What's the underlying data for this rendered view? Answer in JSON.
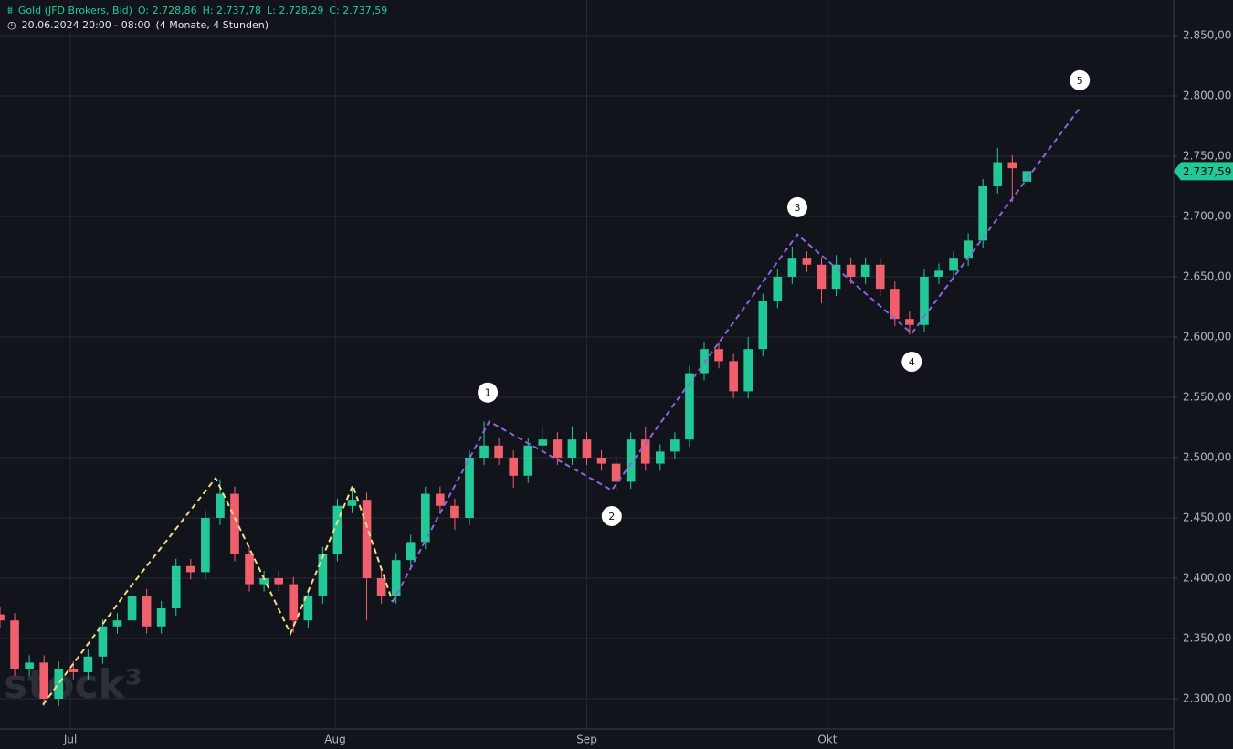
{
  "header": {
    "symbol": "Gold (JFD Brokers, Bid)",
    "ohlc": [
      "O: 2.728,86",
      "H: 2.737,78",
      "L: 2.728,29",
      "C: 2.737,59"
    ],
    "session": "20.06.2024 20:00 - 08:00",
    "span": "(4 Monate, 4 Stunden)"
  },
  "chart_data": {
    "type": "candlestick",
    "x": [
      0,
      2,
      4,
      6,
      8,
      10,
      12,
      14,
      16,
      18,
      20,
      22,
      24,
      26,
      28,
      30,
      32,
      34,
      36,
      38,
      40,
      42,
      44,
      46,
      48,
      50,
      52,
      54,
      56,
      58,
      60,
      62,
      64,
      66,
      68,
      70,
      72,
      74,
      76,
      78,
      80,
      82,
      84,
      86,
      88,
      90,
      92,
      94,
      96,
      98,
      100,
      102,
      104,
      106,
      108,
      110,
      112,
      114,
      116,
      118,
      120,
      122,
      124,
      126,
      128,
      130,
      132,
      134,
      136,
      138,
      140
    ],
    "open": [
      2370,
      2365,
      2325,
      2330,
      2300,
      2325,
      2322,
      2335,
      2360,
      2365,
      2385,
      2360,
      2375,
      2410,
      2405,
      2450,
      2470,
      2420,
      2395,
      2400,
      2395,
      2365,
      2385,
      2420,
      2460,
      2465,
      2400,
      2385,
      2415,
      2430,
      2470,
      2460,
      2450,
      2500,
      2510,
      2500,
      2485,
      2510,
      2515,
      2500,
      2515,
      2500,
      2495,
      2480,
      2515,
      2495,
      2505,
      2515,
      2570,
      2590,
      2580,
      2555,
      2590,
      2630,
      2650,
      2665,
      2660,
      2640,
      2660,
      2650,
      2660,
      2640,
      2615,
      2610,
      2650,
      2655,
      2665,
      2680,
      2725,
      2745,
      2728.86
    ],
    "high": [
      2376,
      2371,
      2336,
      2336,
      2331,
      2331,
      2341,
      2366,
      2371,
      2391,
      2391,
      2381,
      2416,
      2416,
      2456,
      2482,
      2476,
      2426,
      2406,
      2406,
      2401,
      2391,
      2426,
      2466,
      2476,
      2471,
      2406,
      2421,
      2436,
      2476,
      2476,
      2466,
      2506,
      2530,
      2516,
      2506,
      2516,
      2526,
      2521,
      2526,
      2521,
      2506,
      2501,
      2521,
      2525,
      2511,
      2521,
      2576,
      2596,
      2596,
      2586,
      2600,
      2636,
      2656,
      2675,
      2671,
      2666,
      2668,
      2666,
      2666,
      2666,
      2646,
      2621,
      2656,
      2661,
      2671,
      2686,
      2731,
      2757,
      2751,
      2737.78
    ],
    "low": [
      2359,
      2319,
      2319,
      2294,
      2294,
      2316,
      2316,
      2329,
      2354,
      2359,
      2354,
      2354,
      2369,
      2399,
      2399,
      2444,
      2414,
      2389,
      2389,
      2389,
      2355,
      2359,
      2379,
      2414,
      2454,
      2365,
      2379,
      2379,
      2409,
      2424,
      2454,
      2440,
      2444,
      2494,
      2494,
      2475,
      2479,
      2504,
      2494,
      2494,
      2494,
      2489,
      2472,
      2474,
      2489,
      2489,
      2499,
      2509,
      2564,
      2574,
      2549,
      2549,
      2584,
      2624,
      2644,
      2654,
      2628,
      2634,
      2644,
      2644,
      2634,
      2609,
      2602,
      2604,
      2644,
      2649,
      2659,
      2674,
      2719,
      2712,
      2728.29
    ],
    "close": [
      2365,
      2325,
      2330,
      2300,
      2325,
      2322,
      2335,
      2360,
      2365,
      2385,
      2360,
      2375,
      2410,
      2405,
      2450,
      2470,
      2420,
      2395,
      2400,
      2395,
      2365,
      2385,
      2420,
      2460,
      2465,
      2400,
      2385,
      2415,
      2430,
      2470,
      2460,
      2450,
      2500,
      2510,
      2500,
      2485,
      2510,
      2515,
      2500,
      2515,
      2500,
      2495,
      2480,
      2515,
      2495,
      2505,
      2515,
      2570,
      2590,
      2580,
      2555,
      2590,
      2630,
      2650,
      2665,
      2660,
      2640,
      2660,
      2650,
      2660,
      2640,
      2615,
      2610,
      2650,
      2655,
      2665,
      2680,
      2725,
      2745,
      2740,
      2737.59
    ],
    "up_color": "#22c997",
    "down_color": "#f0606c",
    "xlim": [
      0,
      160
    ],
    "xticks": [
      {
        "value": 9.6,
        "label": "Jul"
      },
      {
        "value": 45.7,
        "label": "Aug"
      },
      {
        "value": 80,
        "label": "Sep"
      },
      {
        "value": 112.8,
        "label": "Okt"
      }
    ],
    "ylim": [
      2275,
      2879.5
    ],
    "yticks": [
      {
        "value": 2300,
        "label": "2.300,00"
      },
      {
        "value": 2350,
        "label": "2.350,00"
      },
      {
        "value": 2400,
        "label": "2.400,00"
      },
      {
        "value": 2450,
        "label": "2.450,00"
      },
      {
        "value": 2500,
        "label": "2.500,00"
      },
      {
        "value": 2550,
        "label": "2.550,00"
      },
      {
        "value": 2600,
        "label": "2.600,00"
      },
      {
        "value": 2650,
        "label": "2.650,00"
      },
      {
        "value": 2700,
        "label": "2.700,00"
      },
      {
        "value": 2750,
        "label": "2.750,00"
      },
      {
        "value": 2800,
        "label": "2.800,00"
      },
      {
        "value": 2850,
        "label": "2.850,00"
      }
    ],
    "grid": true,
    "last_price": {
      "value": 2737.59,
      "label": "2.737,59"
    },
    "waves": [
      {
        "color": "#f5d98a",
        "x": [
          5.85,
          17.3,
          29.4,
          39.6,
          48.1,
          53.5
        ],
        "y": [
          2295,
          2389,
          2483,
          2354,
          2477,
          2381
        ]
      },
      {
        "color": "#8e63e0",
        "x": [
          53.5,
          66.7,
          83.4,
          108.7,
          124.3,
          147.2
        ],
        "y": [
          2380,
          2530,
          2473,
          2685,
          2603,
          2790
        ]
      }
    ],
    "wave_labels": [
      {
        "label": "1",
        "x": 66.5,
        "y": 2554
      },
      {
        "label": "2",
        "x": 83.4,
        "y": 2451.5
      },
      {
        "label": "3",
        "x": 108.7,
        "y": 2707.6
      },
      {
        "label": "4",
        "x": 124.3,
        "y": 2579.5
      },
      {
        "label": "5",
        "x": 147.2,
        "y": 2813
      }
    ],
    "watermark": "stock³"
  }
}
